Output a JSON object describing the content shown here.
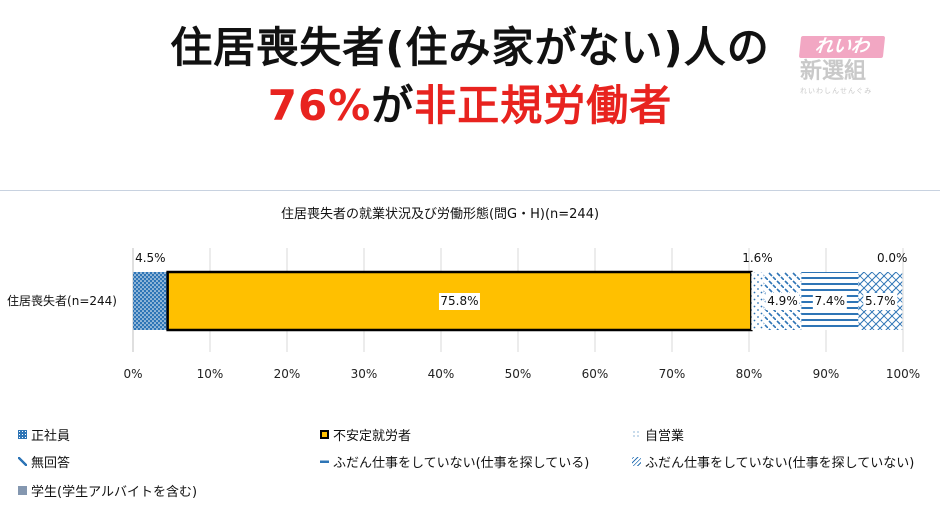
{
  "headline": {
    "line1": "住居喪失者(住み家がない)人の",
    "line2_highlight1": "76%",
    "line2_middle": "が",
    "line2_highlight2": "非正規労働者"
  },
  "logo": {
    "top": "れいわ",
    "mid": "新選組",
    "sub": "れいわしんせんぐみ"
  },
  "chart_data": {
    "type": "bar",
    "orientation": "horizontal-stacked-100",
    "title": "住居喪失者の就業状況及び労働形態(問G・H)(n=244)",
    "categories": [
      "住居喪失者(n=244)"
    ],
    "series": [
      {
        "name": "正社員",
        "values": [
          4.5
        ],
        "label": "4.5%",
        "color": "#2e75b6",
        "pattern": "dots"
      },
      {
        "name": "不安定就労者",
        "values": [
          75.8
        ],
        "label": "75.8%",
        "color": "#ffc000",
        "pattern": "solid"
      },
      {
        "name": "自営業",
        "values": [
          1.6
        ],
        "label": "1.6%",
        "color": "#2e75b6",
        "pattern": "sparse-dots"
      },
      {
        "name": "無回答",
        "values": [
          4.9
        ],
        "label": "4.9%",
        "color": "#2e75b6",
        "pattern": "dashes"
      },
      {
        "name": "ふだん仕事をしていない(仕事を探している)",
        "values": [
          7.4
        ],
        "label": "7.4%",
        "color": "#2e75b6",
        "pattern": "horizontal-lines"
      },
      {
        "name": "ふだん仕事をしていない(仕事を探していない)",
        "values": [
          5.7
        ],
        "label": "5.7%",
        "color": "#2e75b6",
        "pattern": "diagonal-lines"
      },
      {
        "name": "学生(学生アルバイトを含む)",
        "values": [
          0.0
        ],
        "label": "0.0%",
        "color": "#8497b0",
        "pattern": "solid"
      }
    ],
    "xlim": [
      0,
      100
    ],
    "x_ticks": [
      "0%",
      "10%",
      "20%",
      "30%",
      "40%",
      "50%",
      "60%",
      "70%",
      "80%",
      "90%",
      "100%"
    ],
    "grid": true,
    "legend_position": "bottom"
  },
  "colors": {
    "accent_red": "#e8231f",
    "bar_highlight": "#ffc000",
    "pattern_blue": "#2e75b6",
    "gridline": "#d9d9d9"
  }
}
